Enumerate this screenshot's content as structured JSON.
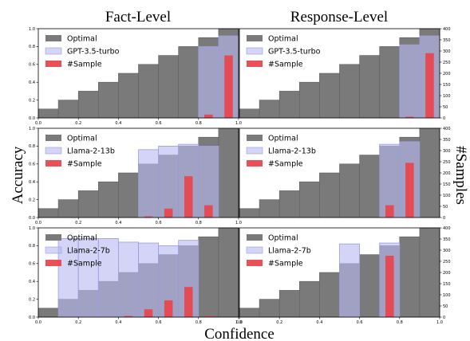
{
  "figure": {
    "col_titles": [
      "Fact-Level",
      "Response-Level"
    ],
    "ylabel_left": "Accuracy",
    "ylabel_right": "#Samples",
    "xlabel": "Confidence"
  },
  "colors": {
    "optimal": "#7a7a7a",
    "model": "#b9b9f0",
    "sample": "#e8474f"
  },
  "chart_data": [
    {
      "type": "bar",
      "row": 0,
      "col": 0,
      "bins": [
        0.05,
        0.15,
        0.25,
        0.35,
        0.45,
        0.55,
        0.65,
        0.75,
        0.85,
        0.95
      ],
      "series": [
        {
          "name": "Optimal",
          "values": [
            0.1,
            0.2,
            0.3,
            0.4,
            0.5,
            0.6,
            0.7,
            0.8,
            0.9,
            1.0
          ]
        },
        {
          "name": "GPT-3.5-turbo",
          "values": [
            null,
            null,
            null,
            null,
            null,
            null,
            null,
            null,
            0.8,
            0.92
          ]
        },
        {
          "name": "#Sample",
          "values": [
            0,
            0,
            0,
            0,
            0,
            0,
            0,
            0,
            15,
            280
          ]
        }
      ],
      "xlim": [
        0,
        1
      ],
      "ylim": [
        0,
        1
      ],
      "y2lim": [
        0,
        400
      ],
      "xticks": [
        "0.0",
        "0.2",
        "0.4",
        "0.6",
        "0.8",
        "1.0"
      ],
      "yticks": [
        "0.0",
        "0.2",
        "0.4",
        "0.6",
        "0.8",
        "1.0"
      ],
      "y2ticks": [],
      "legend": "top-left"
    },
    {
      "type": "bar",
      "row": 0,
      "col": 1,
      "bins": [
        0.05,
        0.15,
        0.25,
        0.35,
        0.45,
        0.55,
        0.65,
        0.75,
        0.85,
        0.95
      ],
      "series": [
        {
          "name": "Optimal",
          "values": [
            0.1,
            0.2,
            0.3,
            0.4,
            0.5,
            0.6,
            0.7,
            0.8,
            0.9,
            1.0
          ]
        },
        {
          "name": "GPT-3.5-turbo",
          "values": [
            null,
            null,
            null,
            null,
            null,
            null,
            null,
            null,
            0.82,
            0.92
          ]
        },
        {
          "name": "#Sample",
          "values": [
            0,
            0,
            0,
            0,
            0,
            0,
            0,
            0,
            5,
            290
          ]
        }
      ],
      "xlim": [
        0,
        1
      ],
      "ylim": [
        0,
        1
      ],
      "y2lim": [
        0,
        400
      ],
      "xticks": [],
      "yticks": [],
      "y2ticks": [
        "0",
        "50",
        "100",
        "150",
        "200",
        "250",
        "300",
        "350",
        "400"
      ],
      "legend": "top-left"
    },
    {
      "type": "bar",
      "row": 1,
      "col": 0,
      "bins": [
        0.05,
        0.15,
        0.25,
        0.35,
        0.45,
        0.55,
        0.65,
        0.75,
        0.85,
        0.95
      ],
      "series": [
        {
          "name": "Optimal",
          "values": [
            0.1,
            0.2,
            0.3,
            0.4,
            0.5,
            0.6,
            0.7,
            0.8,
            0.9,
            1.0
          ]
        },
        {
          "name": "Llama-2-13b",
          "values": [
            null,
            null,
            null,
            null,
            null,
            0.76,
            0.8,
            0.82,
            0.8,
            null
          ]
        },
        {
          "name": "#Sample",
          "values": [
            0,
            0,
            0,
            0,
            0,
            5,
            40,
            185,
            55,
            0
          ]
        }
      ],
      "xlim": [
        0,
        1
      ],
      "ylim": [
        0,
        1
      ],
      "y2lim": [
        0,
        400
      ],
      "xticks": [
        "0.0",
        "0.2",
        "0.4",
        "0.6",
        "0.8",
        "1.0"
      ],
      "yticks": [
        "0.0",
        "0.2",
        "0.4",
        "0.6",
        "0.8",
        "1.0"
      ],
      "y2ticks": [],
      "legend": "top-left"
    },
    {
      "type": "bar",
      "row": 1,
      "col": 1,
      "bins": [
        0.05,
        0.15,
        0.25,
        0.35,
        0.45,
        0.55,
        0.65,
        0.75,
        0.85,
        0.95
      ],
      "series": [
        {
          "name": "Optimal",
          "values": [
            0.1,
            0.2,
            0.3,
            0.4,
            0.5,
            0.6,
            0.7,
            0.8,
            0.9,
            1.0
          ]
        },
        {
          "name": "Llama-2-13b",
          "values": [
            null,
            null,
            null,
            null,
            null,
            null,
            null,
            0.82,
            0.85,
            null
          ]
        },
        {
          "name": "#Sample",
          "values": [
            0,
            0,
            0,
            0,
            0,
            0,
            0,
            55,
            245,
            0
          ]
        }
      ],
      "xlim": [
        0,
        1
      ],
      "ylim": [
        0,
        1
      ],
      "y2lim": [
        0,
        400
      ],
      "xticks": [],
      "yticks": [],
      "y2ticks": [
        "0",
        "50",
        "100",
        "150",
        "200",
        "250",
        "300",
        "350",
        "400"
      ],
      "legend": "top-left"
    },
    {
      "type": "bar",
      "row": 2,
      "col": 0,
      "bins": [
        0.05,
        0.15,
        0.25,
        0.35,
        0.45,
        0.55,
        0.65,
        0.75,
        0.85,
        0.95
      ],
      "series": [
        {
          "name": "Optimal",
          "values": [
            0.1,
            0.2,
            0.3,
            0.4,
            0.5,
            0.6,
            0.7,
            0.8,
            0.9,
            1.0
          ]
        },
        {
          "name": "Llama-2-7b",
          "values": [
            null,
            0.88,
            0.88,
            0.88,
            0.84,
            0.83,
            0.8,
            0.86,
            null,
            null
          ]
        },
        {
          "name": "#Sample",
          "values": [
            0,
            0,
            0,
            0,
            5,
            35,
            75,
            135,
            5,
            0
          ]
        }
      ],
      "xlim": [
        0,
        1
      ],
      "ylim": [
        0,
        1
      ],
      "y2lim": [
        0,
        400
      ],
      "xticks": [
        "0.0",
        "0.2",
        "0.4",
        "0.6",
        "0.8",
        "1.0"
      ],
      "yticks": [
        "0.0",
        "0.2",
        "0.4",
        "0.6",
        "0.8",
        "1.0"
      ],
      "y2ticks": [],
      "legend": "top-left"
    },
    {
      "type": "bar",
      "row": 2,
      "col": 1,
      "bins": [
        0.05,
        0.15,
        0.25,
        0.35,
        0.45,
        0.55,
        0.65,
        0.75,
        0.85,
        0.95
      ],
      "series": [
        {
          "name": "Optimal",
          "values": [
            0.1,
            0.2,
            0.3,
            0.4,
            0.5,
            0.6,
            0.7,
            0.8,
            0.9,
            1.0
          ]
        },
        {
          "name": "Llama-2-7b",
          "values": [
            null,
            null,
            null,
            null,
            null,
            0.82,
            null,
            0.83,
            null,
            null
          ]
        },
        {
          "name": "#Sample",
          "values": [
            0,
            0,
            0,
            0,
            0,
            0,
            0,
            275,
            0,
            0
          ]
        }
      ],
      "xlim": [
        0,
        1
      ],
      "ylim": [
        0,
        1
      ],
      "y2lim": [
        0,
        400
      ],
      "xticks": [
        "0.0",
        "0.2",
        "0.4",
        "0.6",
        "0.8",
        "1.0"
      ],
      "yticks": [],
      "y2ticks": [
        "0",
        "50",
        "100",
        "150",
        "200",
        "250",
        "300",
        "350",
        "400"
      ],
      "legend": "top-left"
    }
  ]
}
